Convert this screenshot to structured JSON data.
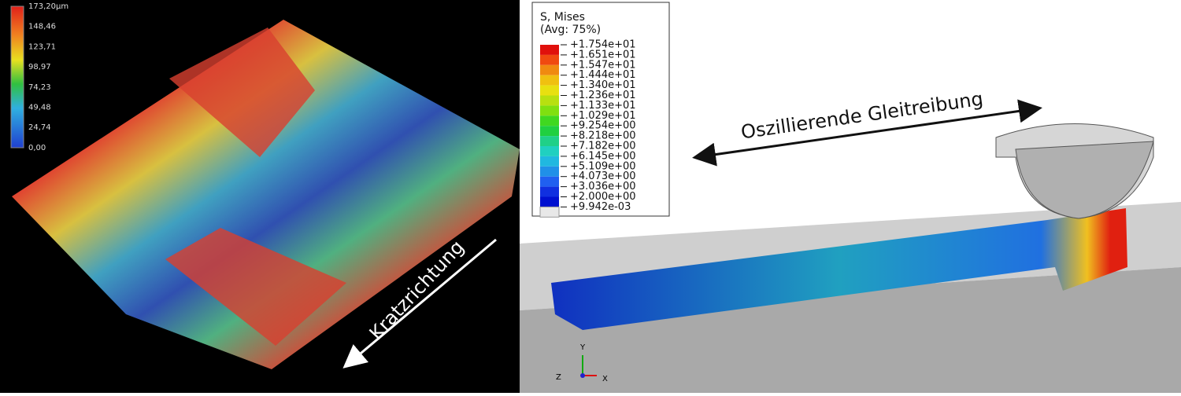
{
  "left_panel": {
    "colorbar": {
      "labels": [
        "173,20µm",
        "148,46",
        "123,71",
        "98,97",
        "74,23",
        "49,48",
        "24,74",
        "0,00"
      ]
    },
    "annotation": "Kratzrichtung"
  },
  "right_panel": {
    "legend": {
      "title": [
        "S, Mises",
        "(Avg: 75%)"
      ],
      "labels": [
        "+1.754e+01",
        "+1.651e+01",
        "+1.547e+01",
        "+1.444e+01",
        "+1.340e+01",
        "+1.236e+01",
        "+1.133e+01",
        "+1.029e+01",
        "+9.254e+00",
        "+8.218e+00",
        "+7.182e+00",
        "+6.145e+00",
        "+5.109e+00",
        "+4.073e+00",
        "+3.036e+00",
        "+2.000e+00",
        "+9.942e-03"
      ]
    },
    "annotation": "Oszillierende Gleitreibung",
    "axes": {
      "y": "Y",
      "z": "Z",
      "x": "X"
    }
  }
}
